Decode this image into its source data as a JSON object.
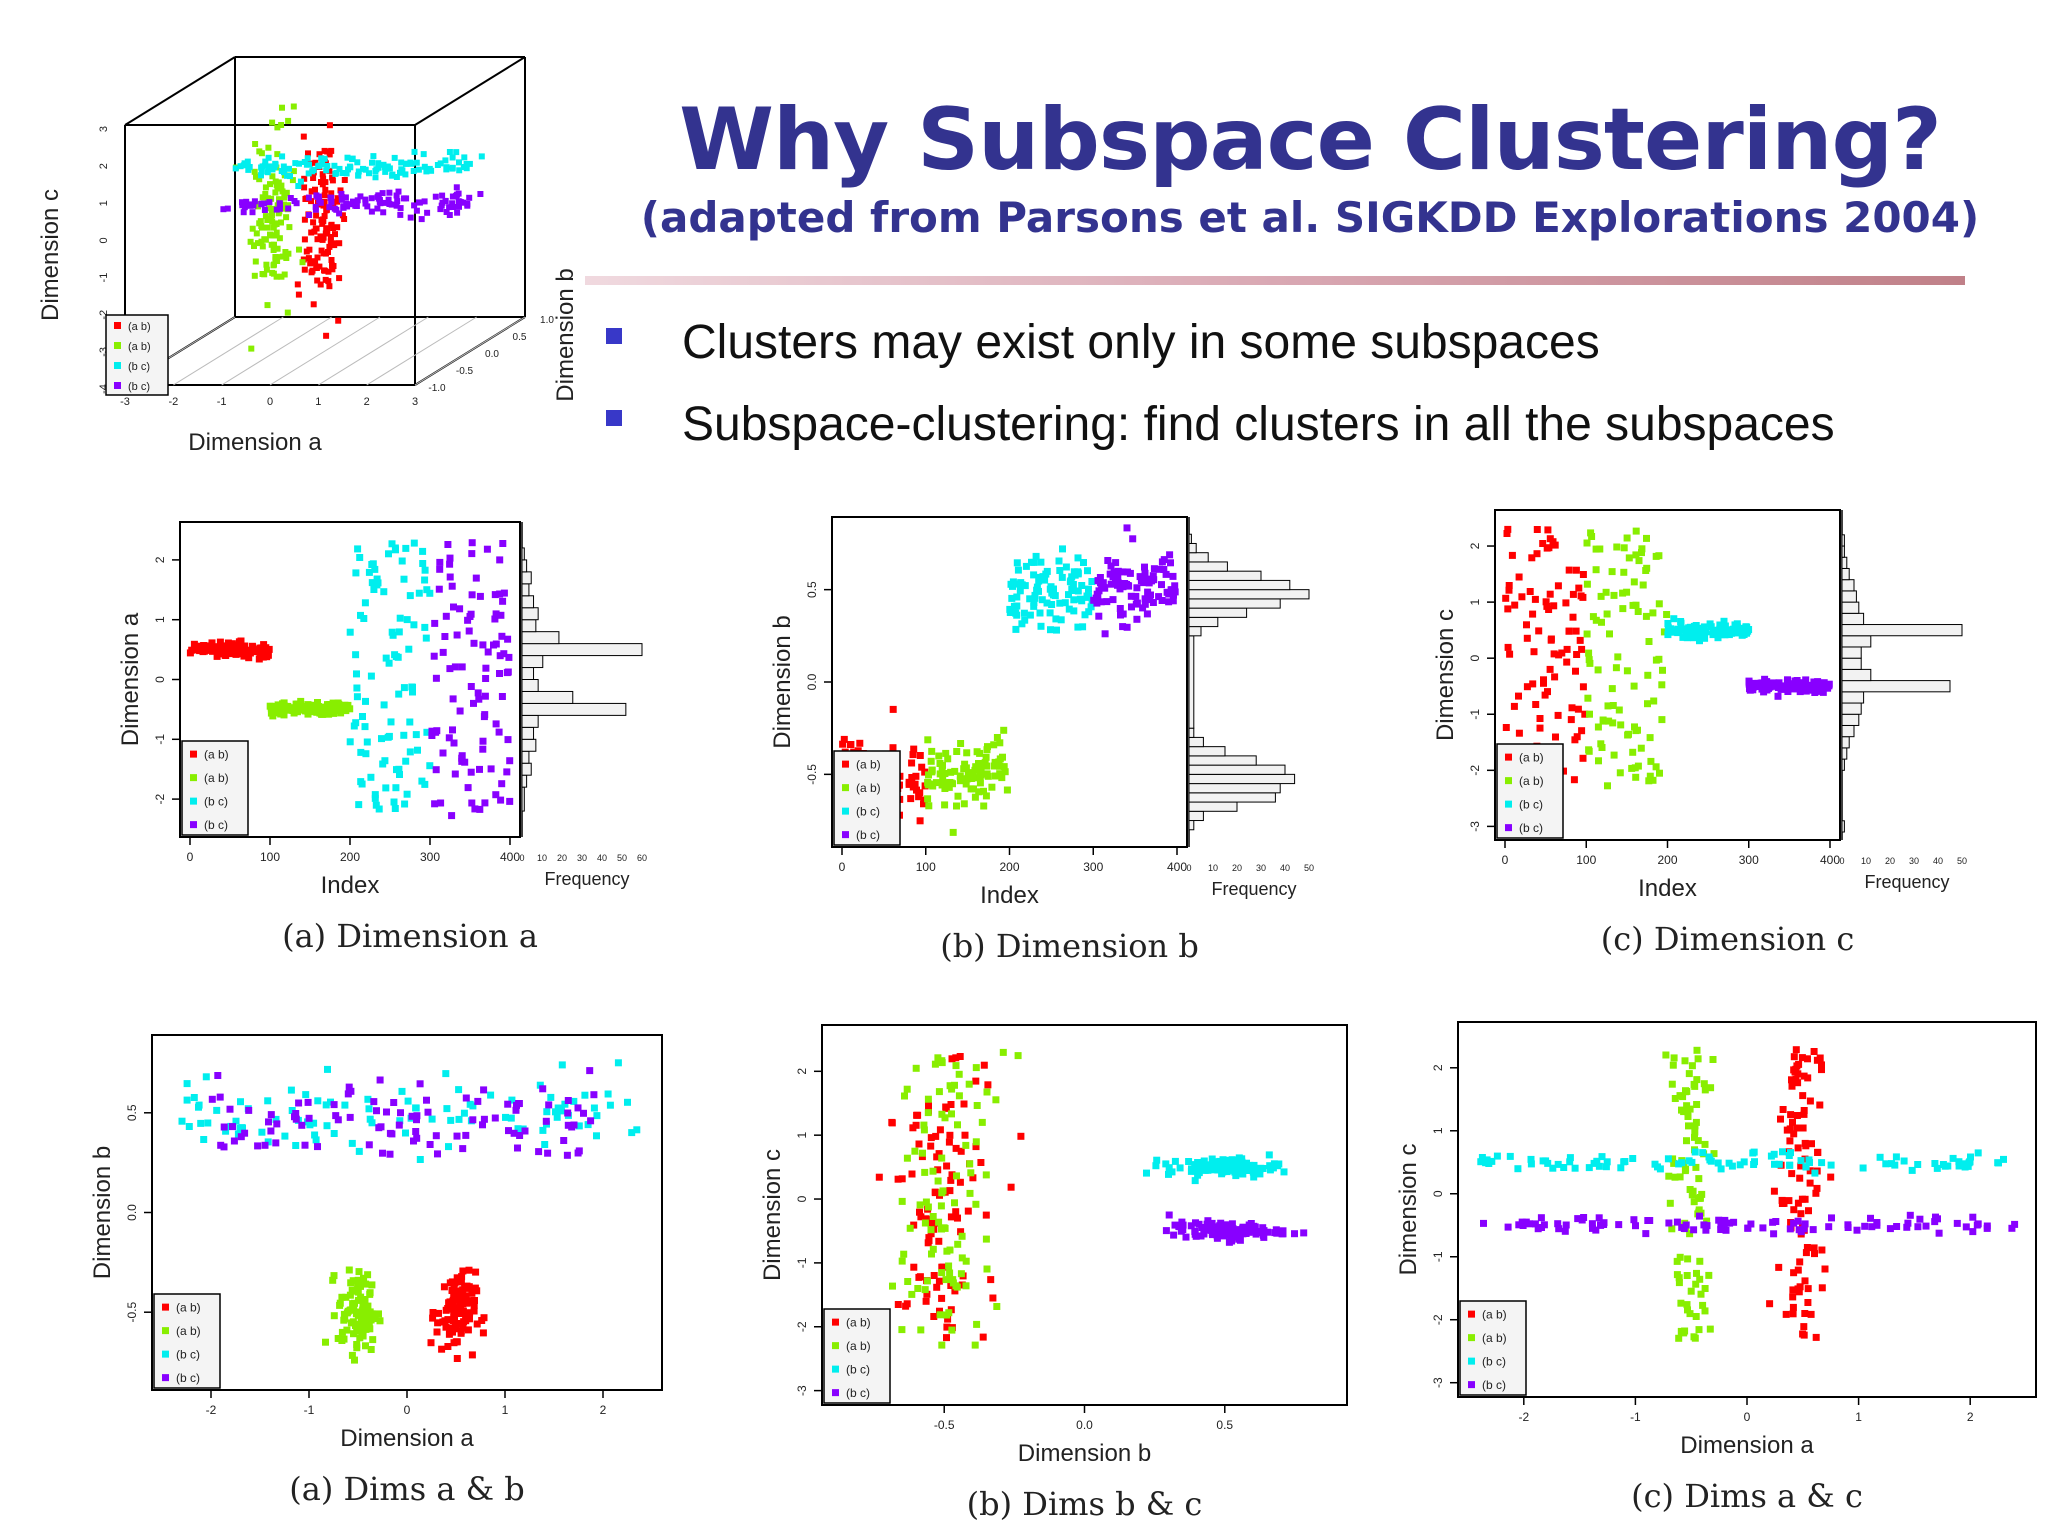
{
  "slide": {
    "title": "Why Subspace Clustering?",
    "subtitle": "(adapted from Parsons et al. SIGKDD Explorations 2004)",
    "bullets": [
      "Clusters may exist only in some subspaces",
      "Subspace-clustering: find clusters in all the subspaces"
    ],
    "colors": {
      "title": "#33338f",
      "bullet": "#3838c8",
      "ab": "#ff0000",
      "ab2": "#88ee00",
      "bc": "#00eeee",
      "bc2": "#8800ff"
    }
  },
  "legend": [
    "(a b)",
    "(a b)",
    "(b c)",
    "(b c)"
  ],
  "chart_data": [
    {
      "id": "cube",
      "type": "scatter",
      "xlabel": "Dimension a",
      "ylabel": "Dimension c",
      "zlabel": "Dimension b",
      "xlim": [
        -3,
        3
      ],
      "ylim": [
        -4,
        3
      ],
      "zlim": [
        -1.0,
        1.0
      ],
      "xticks": [
        "-3",
        "-2",
        "-1",
        "0",
        "1",
        "2",
        "3"
      ],
      "yticks": [
        "-4",
        "-3",
        "-2",
        "-1",
        "0",
        "1",
        "2",
        "3"
      ],
      "zticks": [
        "-1.0",
        "-0.5",
        "0.0",
        "0.5",
        "1.0"
      ],
      "series": [
        {
          "cluster": "ab_red",
          "a": [
            0.5,
            0.15
          ],
          "b": [
            -0.5,
            0.15
          ],
          "c": [
            0,
            1.1
          ],
          "n": 120
        },
        {
          "cluster": "ab_green",
          "a": [
            -0.5,
            0.15
          ],
          "b": [
            -0.5,
            0.15
          ],
          "c": [
            0,
            1.1
          ],
          "n": 120
        },
        {
          "cluster": "bc_cyan",
          "a": [
            0,
            1.2
          ],
          "b": [
            0.5,
            0.15
          ],
          "c": [
            0.5,
            0.08
          ],
          "n": 120
        },
        {
          "cluster": "bc_purple",
          "a": [
            0,
            1.2
          ],
          "b": [
            0.5,
            0.15
          ],
          "c": [
            -0.5,
            0.08
          ],
          "n": 120
        }
      ],
      "outlier": {
        "a": 0.5,
        "b": -0.2,
        "c": -3
      }
    },
    {
      "id": "index-a",
      "type": "scatter",
      "caption": "(a) Dimension a",
      "xlabel": "Index",
      "ylabel": "Dimension a",
      "histlabel": "Frequency",
      "xlim": [
        0,
        400
      ],
      "ylim": [
        -2.5,
        2.5
      ],
      "xticks": [
        "0",
        "100",
        "200",
        "300",
        "400"
      ],
      "yticks": [
        "-2",
        "-1",
        "0",
        "1",
        "2"
      ],
      "histticks": [
        "0",
        "10",
        "20",
        "30",
        "40",
        "50",
        "60"
      ],
      "series": [
        {
          "cluster": "ab_red",
          "index": [
            0,
            100
          ],
          "value": [
            0.5,
            0.06
          ]
        },
        {
          "cluster": "ab_green",
          "index": [
            100,
            200
          ],
          "value": [
            -0.5,
            0.06
          ]
        },
        {
          "cluster": "bc_cyan",
          "index": [
            200,
            300
          ],
          "value": [
            0,
            1.1
          ]
        },
        {
          "cluster": "bc_purple",
          "index": [
            300,
            400
          ],
          "value": [
            0,
            1.1
          ]
        }
      ],
      "histogram": {
        "bins": [
          -2.2,
          -1.8,
          -1.6,
          -1.4,
          -1.2,
          -1.0,
          -0.8,
          -0.6,
          -0.4,
          -0.2,
          0,
          0.2,
          0.4,
          0.6,
          0.8,
          1.0,
          1.2,
          1.4,
          1.6,
          1.8,
          2.0,
          2.2
        ],
        "counts": [
          1,
          2,
          4,
          3,
          6,
          5,
          7,
          45,
          22,
          7,
          5,
          9,
          52,
          16,
          6,
          7,
          5,
          3,
          4,
          2,
          1
        ]
      }
    },
    {
      "id": "index-b",
      "type": "scatter",
      "caption": "(b) Dimension b",
      "xlabel": "Index",
      "ylabel": "Dimension b",
      "histlabel": "Frequency",
      "xlim": [
        0,
        400
      ],
      "ylim": [
        -0.85,
        0.85
      ],
      "xticks": [
        "0",
        "100",
        "200",
        "300",
        "400"
      ],
      "yticks": [
        "-0.5",
        "0.0",
        "0.5"
      ],
      "histticks": [
        "0",
        "10",
        "20",
        "30",
        "40",
        "50"
      ],
      "series": [
        {
          "cluster": "ab_red",
          "index": [
            0,
            100
          ],
          "value": [
            -0.5,
            0.1
          ]
        },
        {
          "cluster": "ab_green",
          "index": [
            100,
            200
          ],
          "value": [
            -0.5,
            0.1
          ]
        },
        {
          "cluster": "bc_cyan",
          "index": [
            200,
            300
          ],
          "value": [
            0.5,
            0.1
          ]
        },
        {
          "cluster": "bc_purple",
          "index": [
            300,
            400
          ],
          "value": [
            0.5,
            0.1
          ]
        }
      ],
      "histogram": {
        "bins": [
          -0.8,
          -0.75,
          -0.7,
          -0.65,
          -0.6,
          -0.55,
          -0.5,
          -0.45,
          -0.4,
          -0.35,
          -0.3,
          -0.25,
          0.25,
          0.3,
          0.35,
          0.4,
          0.45,
          0.5,
          0.55,
          0.6,
          0.65,
          0.7,
          0.75,
          0.8
        ],
        "counts": [
          2,
          6,
          20,
          36,
          38,
          44,
          40,
          28,
          15,
          6,
          2,
          2,
          5,
          12,
          24,
          38,
          50,
          42,
          30,
          16,
          8,
          3,
          1
        ]
      }
    },
    {
      "id": "index-c",
      "type": "scatter",
      "caption": "(c) Dimension c",
      "xlabel": "Index",
      "ylabel": "Dimension c",
      "histlabel": "Frequency",
      "xlim": [
        0,
        400
      ],
      "ylim": [
        -3.1,
        2.5
      ],
      "xticks": [
        "0",
        "100",
        "200",
        "300",
        "400"
      ],
      "yticks": [
        "-3",
        "-2",
        "-1",
        "0",
        "1",
        "2"
      ],
      "histticks": [
        "0",
        "10",
        "20",
        "30",
        "40",
        "50"
      ],
      "series": [
        {
          "cluster": "ab_red",
          "index": [
            0,
            100
          ],
          "value": [
            0,
            1.0
          ]
        },
        {
          "cluster": "ab_green",
          "index": [
            100,
            200
          ],
          "value": [
            0,
            1.0
          ]
        },
        {
          "cluster": "bc_cyan",
          "index": [
            200,
            300
          ],
          "value": [
            0.5,
            0.06
          ]
        },
        {
          "cluster": "bc_purple",
          "index": [
            300,
            400
          ],
          "value": [
            -0.5,
            0.06
          ]
        }
      ],
      "histogram": {
        "bins": [
          -3.1,
          -2.9,
          -2.0,
          -1.8,
          -1.6,
          -1.4,
          -1.2,
          -1.0,
          -0.8,
          -0.6,
          -0.4,
          -0.2,
          0,
          0.2,
          0.4,
          0.6,
          0.8,
          1.0,
          1.2,
          1.4,
          1.6,
          1.8,
          2.0,
          2.2
        ],
        "counts": [
          1,
          0,
          1,
          2,
          3,
          5,
          7,
          8,
          9,
          45,
          12,
          8,
          8,
          12,
          50,
          9,
          7,
          6,
          5,
          3,
          2,
          1,
          1
        ]
      }
    },
    {
      "id": "dims-ab",
      "type": "scatter",
      "caption": "(a) Dims a & b",
      "xlabel": "Dimension a",
      "ylabel": "Dimension b",
      "xlim": [
        -2.5,
        2.5
      ],
      "ylim": [
        -0.85,
        0.85
      ],
      "xticks": [
        "-2",
        "-1",
        "0",
        "1",
        "2"
      ],
      "yticks": [
        "-0.5",
        "0.0",
        "0.5"
      ],
      "series": [
        {
          "cluster": "ab_red",
          "x": [
            0.5,
            0.1
          ],
          "y": [
            -0.5,
            0.1
          ]
        },
        {
          "cluster": "ab_green",
          "x": [
            -0.5,
            0.1
          ],
          "y": [
            -0.5,
            0.1
          ]
        },
        {
          "cluster": "bc_cyan",
          "x": [
            0,
            1.2
          ],
          "y": [
            0.5,
            0.1
          ]
        },
        {
          "cluster": "bc_purple",
          "x": [
            0,
            1.0
          ],
          "y": [
            0.45,
            0.1
          ]
        }
      ]
    },
    {
      "id": "dims-bc",
      "type": "scatter",
      "caption": "(b) Dims b & c",
      "xlabel": "Dimension b",
      "ylabel": "Dimension c",
      "xlim": [
        -0.9,
        0.9
      ],
      "ylim": [
        -3.1,
        2.6
      ],
      "xticks": [
        "-0.5",
        "0.0",
        "0.5"
      ],
      "yticks": [
        "-3",
        "-2",
        "-1",
        "0",
        "1",
        "2"
      ],
      "series": [
        {
          "cluster": "ab_red",
          "x": [
            -0.5,
            0.1
          ],
          "y": [
            0,
            1.0
          ]
        },
        {
          "cluster": "ab_green",
          "x": [
            -0.5,
            0.1
          ],
          "y": [
            0,
            1.0
          ]
        },
        {
          "cluster": "bc_cyan",
          "x": [
            0.5,
            0.1
          ],
          "y": [
            0.5,
            0.07
          ]
        },
        {
          "cluster": "bc_purple",
          "x": [
            0.5,
            0.1
          ],
          "y": [
            -0.5,
            0.07
          ]
        }
      ]
    },
    {
      "id": "dims-ac",
      "type": "scatter",
      "caption": "(c) Dims a & c",
      "xlabel": "Dimension a",
      "ylabel": "Dimension c",
      "xlim": [
        -2.5,
        2.5
      ],
      "ylim": [
        -3.1,
        2.6
      ],
      "xticks": [
        "-2",
        "-1",
        "0",
        "1",
        "2"
      ],
      "yticks": [
        "-3",
        "-2",
        "-1",
        "0",
        "1",
        "2"
      ],
      "series": [
        {
          "cluster": "ab_red",
          "x": [
            0.5,
            0.1
          ],
          "y": [
            0,
            1.0
          ]
        },
        {
          "cluster": "ab_green",
          "x": [
            -0.5,
            0.1
          ],
          "y": [
            0,
            1.0
          ]
        },
        {
          "cluster": "bc_cyan",
          "x": [
            0,
            1.2
          ],
          "y": [
            0.5,
            0.07
          ]
        },
        {
          "cluster": "bc_purple",
          "x": [
            0,
            1.2
          ],
          "y": [
            -0.5,
            0.07
          ]
        }
      ]
    }
  ]
}
